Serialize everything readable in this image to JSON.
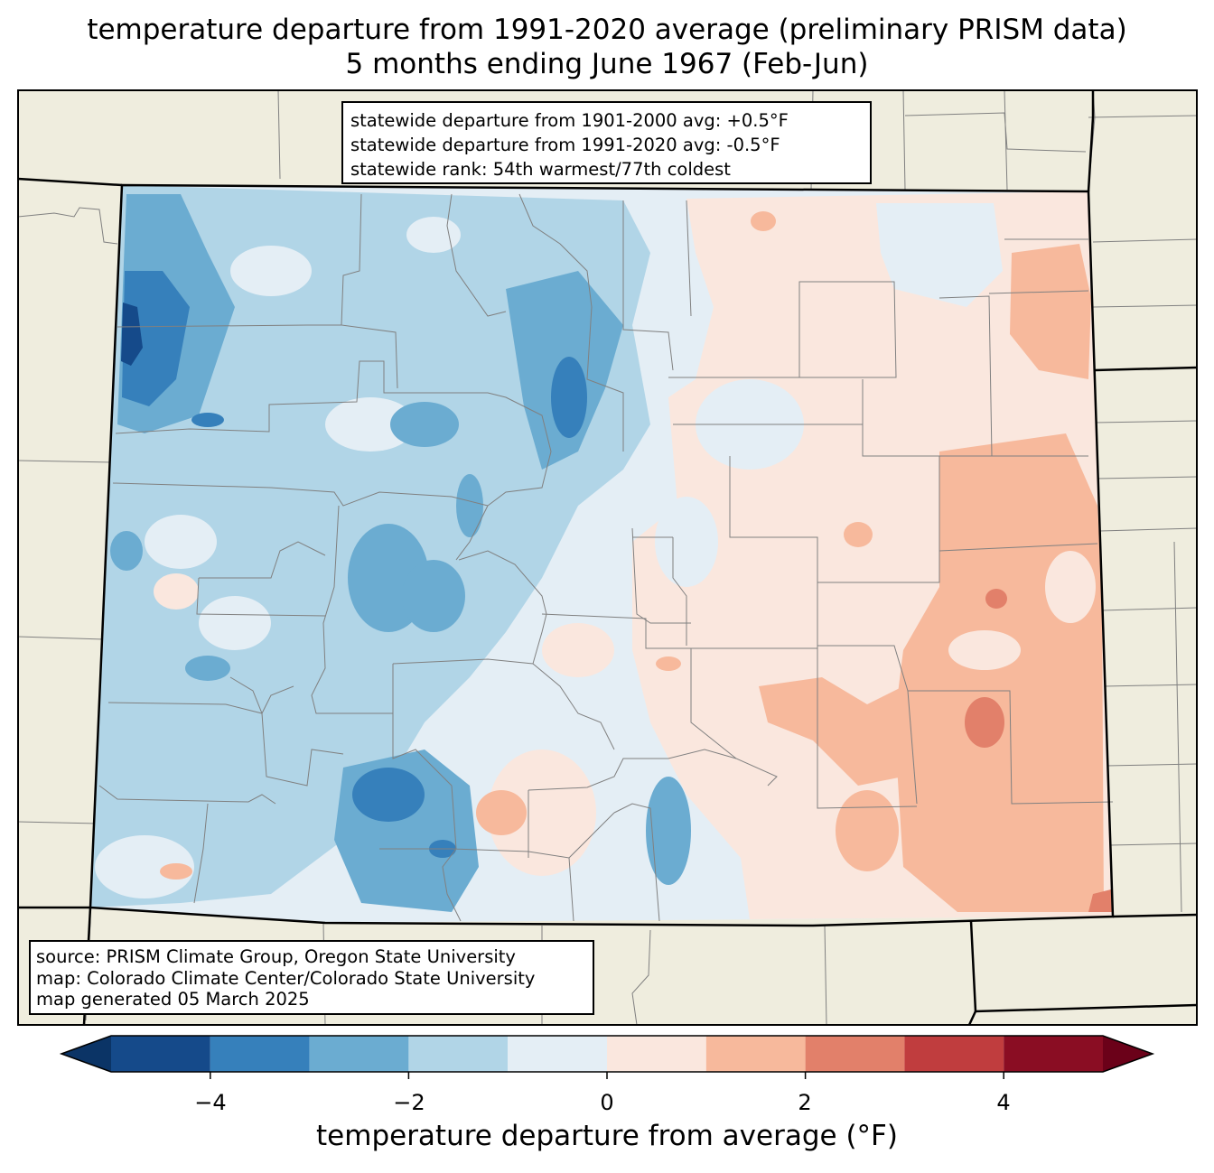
{
  "title": {
    "line1": "temperature departure from 1991-2020 average (preliminary PRISM data)",
    "line2": "5 months ending June 1967 (Feb-Jun)"
  },
  "stats": [
    "statewide departure from 1901-2000 avg: +0.5°F",
    "statewide departure from 1991-2020 avg: -0.5°F",
    "statewide rank: 54th warmest/77th coldest"
  ],
  "source": [
    "source: PRISM Climate Group, Oregon State University",
    "map: Colorado Climate Center/Colorado State University",
    "map generated 05 March 2025"
  ],
  "colorbar": {
    "label": "temperature departure from average (°F)",
    "ticks": [
      "−4",
      "−2",
      "0",
      "2",
      "4"
    ],
    "range": [
      -5,
      5
    ],
    "bins": [
      {
        "from": -5,
        "to": -4,
        "color": "#154a8a"
      },
      {
        "from": -4,
        "to": -3,
        "color": "#3680bb"
      },
      {
        "from": -3,
        "to": -2,
        "color": "#6bacd1"
      },
      {
        "from": -2,
        "to": -1,
        "color": "#b1d5e7"
      },
      {
        "from": -1,
        "to": 0,
        "color": "#e4eef5"
      },
      {
        "from": 0,
        "to": 1,
        "color": "#fae7de"
      },
      {
        "from": 1,
        "to": 2,
        "color": "#f7b99c"
      },
      {
        "from": 2,
        "to": 3,
        "color": "#e2806a"
      },
      {
        "from": 3,
        "to": 4,
        "color": "#c03d3e"
      },
      {
        "from": 4,
        "to": 5,
        "color": "#8a0d23"
      }
    ],
    "under_color": "#0b3466",
    "over_color": "#6b0119"
  },
  "map_colors": {
    "land": "#efedde",
    "state_border": "#000000",
    "county_border": "#808080"
  }
}
